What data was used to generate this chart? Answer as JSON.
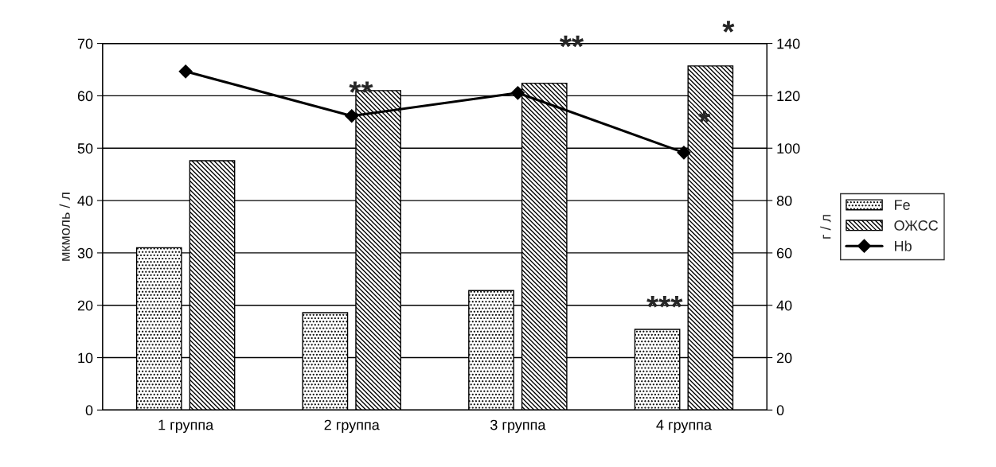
{
  "chart_data": {
    "type": "bar",
    "categories": [
      "1 группа",
      "2 группа",
      "3 группа",
      "4 группа"
    ],
    "ylabel": "мкмоль / л",
    "y2label": "г / л",
    "series": [
      {
        "name": "Fe",
        "color": "#000000",
        "values": [
          31.0,
          18.6,
          22.8,
          15.4
        ]
      },
      {
        "name": "ОЖСС",
        "color": "#000000",
        "values": [
          47.6,
          61.0,
          62.4,
          65.7
        ]
      },
      {
        "name": "Hb",
        "type": "line",
        "axis": "y2",
        "color": "#000000",
        "marker": "diamond",
        "line_style": "solid",
        "values": [
          129.3,
          112.3,
          121.1,
          98.3
        ]
      }
    ],
    "ylim": [
      0,
      70
    ],
    "yticks": [
      0,
      10,
      20,
      30,
      40,
      50,
      60,
      70
    ],
    "y2lim": [
      0,
      140
    ],
    "y2ticks": [
      0,
      20,
      40,
      60,
      80,
      100,
      120,
      140
    ],
    "grid": "y",
    "legend": "right",
    "annotations": [
      "**",
      "**",
      "***",
      "*",
      "*"
    ]
  }
}
